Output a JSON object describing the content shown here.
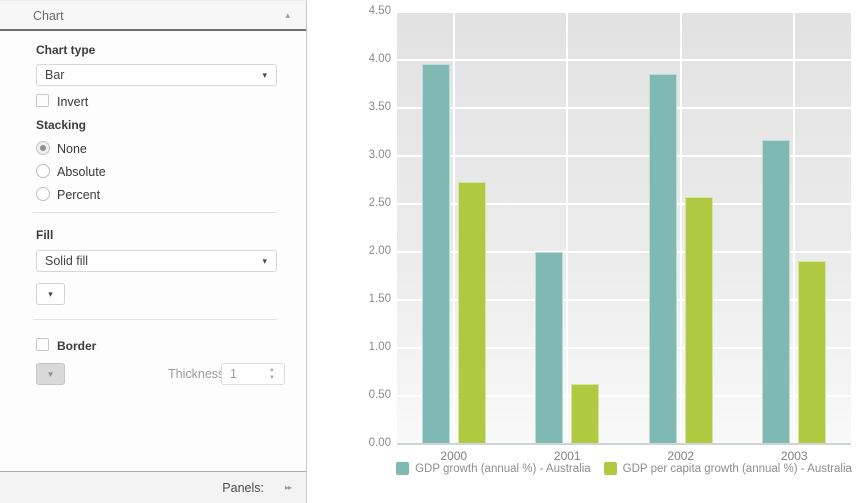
{
  "panel": {
    "header": {
      "title": "Chart"
    },
    "chart_type": {
      "label": "Chart type",
      "value": "Bar"
    },
    "invert": {
      "label": "Invert",
      "checked": false
    },
    "stacking": {
      "label": "Stacking",
      "options": [
        {
          "label": "None",
          "selected": true
        },
        {
          "label": "Absolute",
          "selected": false
        },
        {
          "label": "Percent",
          "selected": false
        }
      ]
    },
    "fill": {
      "label": "Fill",
      "value": "Solid fill"
    },
    "border": {
      "label": "Border",
      "checked": false,
      "thickness_label": "Thickness:",
      "thickness_value": "1"
    },
    "footer": {
      "label": "Panels:"
    }
  },
  "chart_data": {
    "type": "bar",
    "title": "",
    "categories": [
      "2000",
      "2001",
      "2002",
      "2003"
    ],
    "series": [
      {
        "name": "GDP growth (annual %) - Australia",
        "color": "#80b8b2",
        "values": [
          3.96,
          2.0,
          3.85,
          3.17
        ]
      },
      {
        "name": "GDP per capita growth (annual %) - Australia",
        "color": "#b1c940",
        "values": [
          2.73,
          0.63,
          2.57,
          1.91
        ]
      }
    ],
    "ylim": [
      0,
      4.5
    ],
    "ytick_step": 0.5,
    "grid": true,
    "legend_position": "bottom"
  }
}
